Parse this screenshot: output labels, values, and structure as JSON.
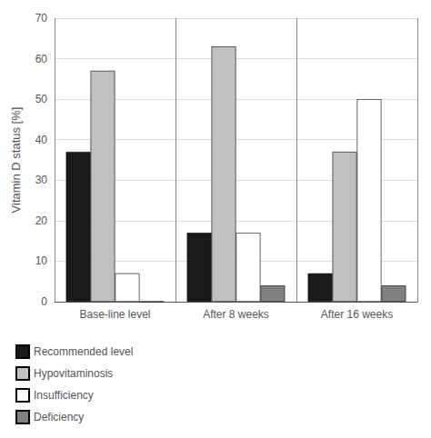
{
  "chart_data": {
    "type": "bar",
    "categories": [
      "Base-line level",
      "After 8 weeks",
      "After 16 weeks"
    ],
    "series": [
      {
        "name": "Recommended level",
        "color": "#1a1a1a",
        "values": [
          37,
          17,
          7
        ]
      },
      {
        "name": "Hypovitaminosis",
        "color": "#c0c0c0",
        "values": [
          57,
          63,
          37
        ]
      },
      {
        "name": "Insufficiency",
        "color": "#ffffff",
        "values": [
          7,
          17,
          50
        ]
      },
      {
        "name": "Deficiency",
        "color": "#808080",
        "values": [
          0,
          4,
          4
        ]
      }
    ],
    "ylabel": "Vitamin D status [%]",
    "ylim": [
      0,
      70
    ],
    "yticks": [
      0,
      10,
      20,
      30,
      40,
      50,
      60,
      70
    ],
    "grid": true,
    "legend": "bottom"
  }
}
